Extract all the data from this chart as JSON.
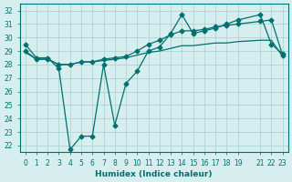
{
  "xlabel": "Humidex (Indice chaleur)",
  "background_color": "#d6eeee",
  "grid_color": "#aacccc",
  "line_color": "#007070",
  "xlim": [
    -0.5,
    23.5
  ],
  "ylim": [
    21.5,
    32.5
  ],
  "xticks": [
    0,
    1,
    2,
    3,
    4,
    5,
    6,
    7,
    8,
    9,
    10,
    11,
    12,
    13,
    14,
    15,
    16,
    17,
    18,
    19,
    21,
    22,
    23
  ],
  "yticks": [
    22,
    23,
    24,
    25,
    26,
    27,
    28,
    29,
    30,
    31,
    32
  ],
  "x_series1": [
    0,
    1,
    2,
    3,
    4,
    5,
    6,
    7,
    8,
    9,
    10,
    11,
    12,
    13,
    14,
    15,
    16,
    17,
    18,
    19,
    21,
    22,
    23
  ],
  "series1": [
    29.5,
    28.5,
    28.5,
    27.7,
    21.7,
    22.7,
    22.7,
    28.0,
    23.5,
    26.6,
    27.5,
    29.0,
    29.3,
    30.3,
    31.7,
    30.3,
    30.5,
    30.7,
    31.0,
    31.3,
    31.7,
    29.5,
    28.8
  ],
  "x_series2": [
    0,
    1,
    2,
    3,
    4,
    5,
    6,
    7,
    8,
    9,
    10,
    11,
    12,
    13,
    14,
    15,
    16,
    17,
    18,
    19,
    21,
    22,
    23
  ],
  "series2": [
    29.0,
    28.4,
    28.4,
    28.0,
    28.0,
    28.2,
    28.2,
    28.4,
    28.5,
    28.6,
    29.0,
    29.5,
    29.8,
    30.2,
    30.5,
    30.5,
    30.6,
    30.8,
    30.9,
    31.0,
    31.2,
    31.3,
    28.7
  ],
  "x_series3": [
    0,
    1,
    2,
    3,
    4,
    5,
    6,
    7,
    8,
    9,
    10,
    11,
    12,
    13,
    14,
    15,
    16,
    17,
    18,
    19,
    21,
    22,
    23
  ],
  "series3": [
    28.9,
    28.4,
    28.4,
    28.0,
    28.0,
    28.2,
    28.2,
    28.3,
    28.4,
    28.5,
    28.7,
    28.9,
    29.0,
    29.2,
    29.4,
    29.4,
    29.5,
    29.6,
    29.6,
    29.7,
    29.8,
    29.8,
    28.6
  ]
}
